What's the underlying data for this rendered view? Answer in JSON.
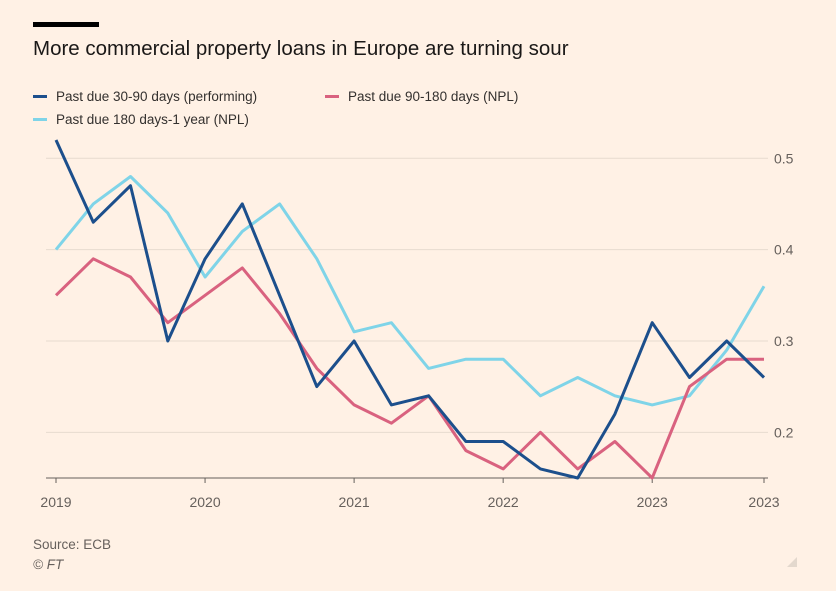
{
  "header": {
    "title": "More commercial property loans in Europe are turning sour"
  },
  "legend": {
    "items": [
      {
        "label": "Past due 30-90 days (performing)",
        "color": "#1c4f8c"
      },
      {
        "label": "Past due 90-180 days (NPL)",
        "color": "#d9627f"
      },
      {
        "label": "Past due 180 days-1 year (NPL)",
        "color": "#7fd4e8"
      }
    ]
  },
  "footer": {
    "source": "Source: ECB",
    "credit": "© FT"
  },
  "chart_data": {
    "type": "line",
    "title": "More commercial property loans in Europe are turning sour",
    "xlabel": "",
    "ylabel": "",
    "x": [
      2019.0,
      2019.25,
      2019.5,
      2019.75,
      2020.0,
      2020.25,
      2020.5,
      2020.75,
      2021.0,
      2021.25,
      2021.5,
      2021.75,
      2022.0,
      2022.25,
      2022.5,
      2022.75,
      2023.0,
      2023.25,
      2023.5,
      2023.75
    ],
    "x_ticks": [
      {
        "value": 2019,
        "label": "2019"
      },
      {
        "value": 2020,
        "label": "2020"
      },
      {
        "value": 2021,
        "label": "2021"
      },
      {
        "value": 2022,
        "label": "2022"
      },
      {
        "value": 2023,
        "label": "2023"
      },
      {
        "value": 2023.75,
        "label": "2023"
      }
    ],
    "y_ticks": [
      {
        "value": 0.2,
        "label": "0.2"
      },
      {
        "value": 0.3,
        "label": "0.3"
      },
      {
        "value": 0.4,
        "label": "0.4"
      },
      {
        "value": 0.5,
        "label": "0.5"
      }
    ],
    "xlim": [
      2019.0,
      2023.75
    ],
    "ylim": [
      0.15,
      0.52
    ],
    "y_axis_side": "right",
    "grid": true,
    "legend_position": "top",
    "series": [
      {
        "name": "Past due 30-90 days (performing)",
        "color": "#1c4f8c",
        "values": [
          0.52,
          0.43,
          0.47,
          0.3,
          0.39,
          0.45,
          0.35,
          0.25,
          0.3,
          0.23,
          0.24,
          0.19,
          0.19,
          0.16,
          0.15,
          0.22,
          0.32,
          0.26,
          0.3,
          0.26
        ]
      },
      {
        "name": "Past due 90-180 days (NPL)",
        "color": "#d9627f",
        "values": [
          0.35,
          0.39,
          0.37,
          0.32,
          0.35,
          0.38,
          0.33,
          0.27,
          0.23,
          0.21,
          0.24,
          0.18,
          0.16,
          0.2,
          0.16,
          0.19,
          0.15,
          0.25,
          0.28,
          0.28
        ]
      },
      {
        "name": "Past due 180 days-1 year (NPL)",
        "color": "#7fd4e8",
        "values": [
          0.4,
          0.45,
          0.48,
          0.44,
          0.37,
          0.42,
          0.45,
          0.39,
          0.31,
          0.32,
          0.27,
          0.28,
          0.28,
          0.24,
          0.26,
          0.24,
          0.23,
          0.24,
          0.29,
          0.36
        ]
      }
    ]
  }
}
